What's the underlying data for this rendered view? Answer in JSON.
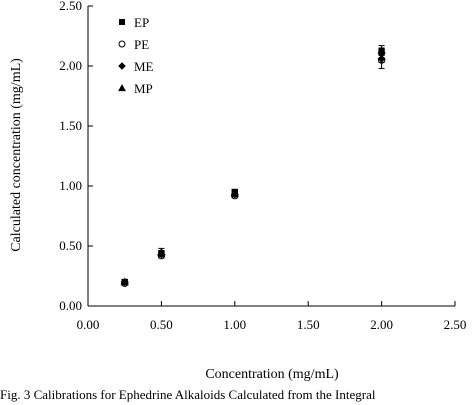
{
  "chart_data": {
    "type": "scatter",
    "xlabel": "Concentration (mg/mL)",
    "ylabel": "Calculated concentration (mg/mL)",
    "xlim": [
      0,
      2.5
    ],
    "ylim": [
      0,
      2.5
    ],
    "x_ticks": [
      "0.00",
      "0.50",
      "1.00",
      "1.50",
      "2.00",
      "2.50"
    ],
    "y_ticks": [
      "0.00",
      "0.50",
      "1.00",
      "1.50",
      "2.00",
      "2.50"
    ],
    "grid": false,
    "legend_position": "top-left",
    "series": [
      {
        "name": "EP",
        "marker": "square",
        "x": [
          0.25,
          0.5,
          1.0,
          2.0
        ],
        "y": [
          0.2,
          0.44,
          0.95,
          2.12
        ],
        "err": [
          0.01,
          0.02,
          0.02,
          0.03
        ]
      },
      {
        "name": "PE",
        "marker": "circle-open",
        "x": [
          0.25,
          0.5,
          1.0,
          2.0
        ],
        "y": [
          0.19,
          0.42,
          0.92,
          2.05
        ],
        "err": [
          0.01,
          0.02,
          0.02,
          0.07
        ]
      },
      {
        "name": "ME",
        "marker": "diamond",
        "x": [
          0.25,
          0.5,
          1.0,
          2.0
        ],
        "y": [
          0.2,
          0.43,
          0.93,
          2.06
        ],
        "err": [
          0.01,
          0.02,
          0.02,
          0.03
        ]
      },
      {
        "name": "MP",
        "marker": "triangle",
        "x": [
          0.25,
          0.5,
          1.0,
          2.0
        ],
        "y": [
          0.2,
          0.45,
          0.94,
          2.13
        ],
        "err": [
          0.01,
          0.03,
          0.02,
          0.04
        ]
      }
    ]
  },
  "caption": "Fig. 3    Calibrations for Ephedrine Alkaloids Calculated from the Integral"
}
